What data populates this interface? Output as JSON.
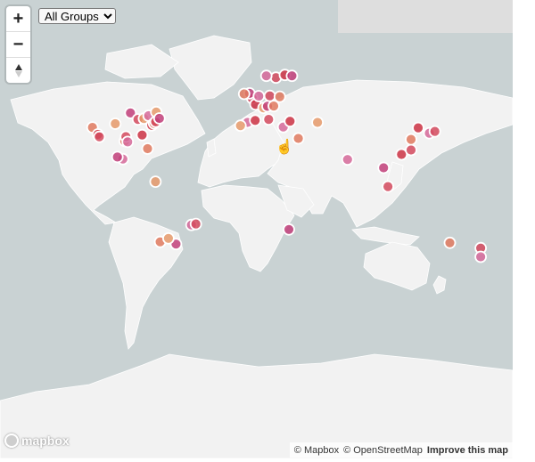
{
  "controls": {
    "zoom_in": "+",
    "zoom_out": "−",
    "compass_icon": "compass-icon"
  },
  "filter": {
    "selected": "All Groups",
    "options": [
      "All Groups"
    ]
  },
  "attribution": {
    "mapbox": "© Mapbox",
    "osm": "© OpenStreetMap",
    "improve": "Improve this map"
  },
  "logo": {
    "text": "mapbox"
  },
  "colors": {
    "water": "#c9d2d3",
    "land": "#f2f2f2",
    "marker_palette": [
      "#d44a5e",
      "#e07a5f",
      "#c2407a",
      "#e69a6b",
      "#d66a9a",
      "#cc3344"
    ]
  },
  "markers": [
    {
      "lon": -122.4,
      "lat": 37.8,
      "color": "#e07a5f"
    },
    {
      "lon": -118.2,
      "lat": 34.0,
      "color": "#cc3344"
    },
    {
      "lon": -117.1,
      "lat": 32.7,
      "color": "#d44a5e"
    },
    {
      "lon": -104.9,
      "lat": 39.7,
      "color": "#e69a6b"
    },
    {
      "lon": -97.7,
      "lat": 30.3,
      "color": "#e07a5f"
    },
    {
      "lon": -96.8,
      "lat": 32.8,
      "color": "#d44a5e"
    },
    {
      "lon": -95.4,
      "lat": 29.8,
      "color": "#d66a9a"
    },
    {
      "lon": -93.3,
      "lat": 45.0,
      "color": "#c2407a"
    },
    {
      "lon": -87.6,
      "lat": 41.9,
      "color": "#d44a5e"
    },
    {
      "lon": -84.4,
      "lat": 33.7,
      "color": "#cc3344"
    },
    {
      "lon": -83.0,
      "lat": 42.3,
      "color": "#e69a6b"
    },
    {
      "lon": -80.2,
      "lat": 25.8,
      "color": "#e07a5f"
    },
    {
      "lon": -79.4,
      "lat": 43.7,
      "color": "#d66a9a"
    },
    {
      "lon": -77.0,
      "lat": 38.9,
      "color": "#cc3344"
    },
    {
      "lon": -75.2,
      "lat": 39.9,
      "color": "#e07a5f"
    },
    {
      "lon": -74.0,
      "lat": 40.7,
      "color": "#d44a5e"
    },
    {
      "lon": -73.6,
      "lat": 45.5,
      "color": "#e69a6b"
    },
    {
      "lon": -71.1,
      "lat": 42.4,
      "color": "#c2407a"
    },
    {
      "lon": -99.1,
      "lat": 19.4,
      "color": "#d66a9a"
    },
    {
      "lon": -103.3,
      "lat": 20.7,
      "color": "#c2407a"
    },
    {
      "lon": -74.1,
      "lat": 4.7,
      "color": "#e69a6b"
    },
    {
      "lon": -46.6,
      "lat": -23.5,
      "color": "#d66a9a"
    },
    {
      "lon": -43.2,
      "lat": -22.9,
      "color": "#d44a5e"
    },
    {
      "lon": -70.6,
      "lat": -33.4,
      "color": "#e07a5f"
    },
    {
      "lon": -58.4,
      "lat": -34.6,
      "color": "#c2407a"
    },
    {
      "lon": -64.2,
      "lat": -31.4,
      "color": "#e69a6b"
    },
    {
      "lon": -0.1,
      "lat": 51.5,
      "color": "#d44a5e"
    },
    {
      "lon": -2.2,
      "lat": 53.5,
      "color": "#c2407a"
    },
    {
      "lon": -6.3,
      "lat": 53.3,
      "color": "#e07a5f"
    },
    {
      "lon": 2.4,
      "lat": 48.9,
      "color": "#cc3344"
    },
    {
      "lon": 4.9,
      "lat": 52.4,
      "color": "#d66a9a"
    },
    {
      "lon": 13.4,
      "lat": 52.5,
      "color": "#d44a5e"
    },
    {
      "lon": 8.5,
      "lat": 47.4,
      "color": "#e69a6b"
    },
    {
      "lon": 11.6,
      "lat": 48.1,
      "color": "#c2407a"
    },
    {
      "lon": 16.4,
      "lat": 48.2,
      "color": "#e07a5f"
    },
    {
      "lon": 12.5,
      "lat": 41.9,
      "color": "#d44a5e"
    },
    {
      "lon": -3.7,
      "lat": 40.4,
      "color": "#d66a9a"
    },
    {
      "lon": 2.2,
      "lat": 41.4,
      "color": "#cc3344"
    },
    {
      "lon": -9.1,
      "lat": 38.7,
      "color": "#e69a6b"
    },
    {
      "lon": 18.1,
      "lat": 59.3,
      "color": "#d44a5e"
    },
    {
      "lon": 24.9,
      "lat": 60.2,
      "color": "#cc3344"
    },
    {
      "lon": 30.3,
      "lat": 59.9,
      "color": "#c2407a"
    },
    {
      "lon": 21.0,
      "lat": 52.2,
      "color": "#e07a5f"
    },
    {
      "lon": 23.7,
      "lat": 38.0,
      "color": "#d66a9a"
    },
    {
      "lon": 28.9,
      "lat": 41.0,
      "color": "#cc3344"
    },
    {
      "lon": 35.2,
      "lat": 31.8,
      "color": "#e07a5f"
    },
    {
      "lon": 49.9,
      "lat": 40.4,
      "color": "#e69a6b"
    },
    {
      "lon": 10.7,
      "lat": 59.9,
      "color": "#d66a9a"
    },
    {
      "lon": 72.9,
      "lat": 19.1,
      "color": "#d66a9a"
    },
    {
      "lon": 100.5,
      "lat": 13.8,
      "color": "#c2407a"
    },
    {
      "lon": 103.8,
      "lat": 1.4,
      "color": "#d44a5e"
    },
    {
      "lon": 114.2,
      "lat": 22.3,
      "color": "#cc3344"
    },
    {
      "lon": 121.5,
      "lat": 25.0,
      "color": "#d44a5e"
    },
    {
      "lon": 121.5,
      "lat": 31.2,
      "color": "#e07a5f"
    },
    {
      "lon": 126.98,
      "lat": 37.6,
      "color": "#cc3344"
    },
    {
      "lon": 135.5,
      "lat": 34.7,
      "color": "#d66a9a"
    },
    {
      "lon": 139.7,
      "lat": 35.7,
      "color": "#d44a5e"
    },
    {
      "lon": 28.0,
      "lat": -26.2,
      "color": "#c2407a"
    },
    {
      "lon": 151.2,
      "lat": -33.9,
      "color": "#e07a5f"
    },
    {
      "lon": 174.8,
      "lat": -36.8,
      "color": "#d44a5e"
    },
    {
      "lon": 174.8,
      "lat": -41.3,
      "color": "#d66a9a"
    }
  ]
}
